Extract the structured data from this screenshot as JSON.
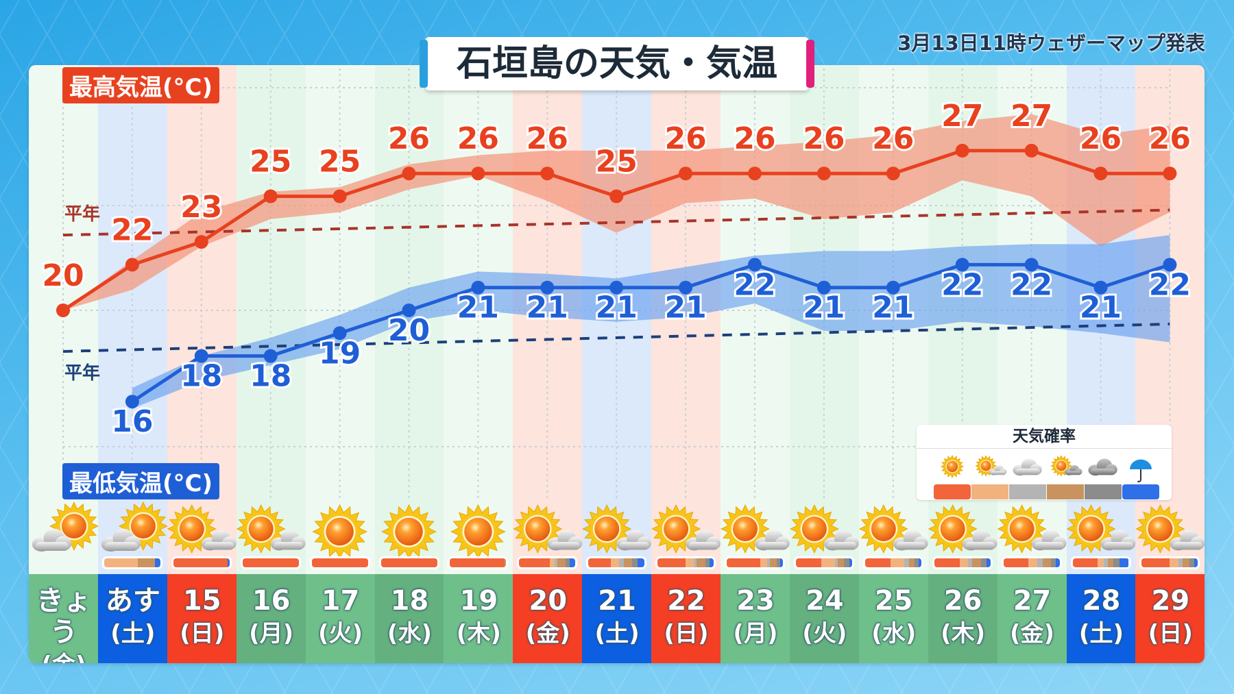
{
  "header": {
    "title": "石垣島の天気・気温",
    "issued": "3月13日11時ウェザーマップ発表"
  },
  "labels": {
    "max_temp": "最高気温(°C)",
    "min_temp": "最低気温(°C)",
    "normal_high": "平年",
    "normal_low": "平年"
  },
  "legend": {
    "title": "天気確率",
    "items": [
      {
        "icon": "sunny-icon",
        "color": "#f2643a"
      },
      {
        "icon": "sunny-then-cloudy-icon",
        "color": "#f2b27e"
      },
      {
        "icon": "cloudy-icon",
        "color": "#b4b4b4"
      },
      {
        "icon": "sunny-cloudy-icon",
        "color": "#c8935e"
      },
      {
        "icon": "overcast-icon",
        "color": "#8c8c8c"
      },
      {
        "icon": "umbrella-icon",
        "color": "#2f6fe8"
      }
    ]
  },
  "colors": {
    "high": "#e8411f",
    "high_band": "#f39a80",
    "high_normal": "#a8342a",
    "low": "#1f5fd6",
    "low_band": "#6aa2f0",
    "low_normal": "#1d3f7a",
    "weekday": "#6fbf8b",
    "saturday": "#0b5fe0",
    "holiday": "#f43f25"
  },
  "days": [
    {
      "date": "きょう",
      "weekday": "(金)",
      "type": "weekday",
      "icon": "cloudy-sunny",
      "prob": null
    },
    {
      "date": "あす",
      "weekday": "(土)",
      "type": "saturday",
      "icon": "cloudy-sunny",
      "prob": [
        0,
        60,
        0,
        30,
        0,
        10
      ]
    },
    {
      "date": "15",
      "weekday": "(日)",
      "type": "holiday",
      "icon": "sunny-cloudy",
      "prob": [
        97,
        0,
        0,
        0,
        0,
        3
      ]
    },
    {
      "date": "16",
      "weekday": "(月)",
      "type": "weekday",
      "icon": "sunny-cloudy",
      "prob": [
        100,
        0,
        0,
        0,
        0,
        0
      ]
    },
    {
      "date": "17",
      "weekday": "(火)",
      "type": "weekday",
      "icon": "sunny",
      "prob": [
        100,
        0,
        0,
        0,
        0,
        0
      ]
    },
    {
      "date": "18",
      "weekday": "(水)",
      "type": "weekday",
      "icon": "sunny",
      "prob": [
        100,
        0,
        0,
        0,
        0,
        0
      ]
    },
    {
      "date": "19",
      "weekday": "(木)",
      "type": "weekday",
      "icon": "sunny",
      "prob": [
        97,
        0,
        0,
        3,
        0,
        0
      ]
    },
    {
      "date": "20",
      "weekday": "(金)",
      "type": "holiday",
      "icon": "sunny-cloudy",
      "prob": [
        55,
        8,
        5,
        15,
        7,
        10
      ]
    },
    {
      "date": "21",
      "weekday": "(土)",
      "type": "saturday",
      "icon": "sunny-cloudy",
      "prob": [
        40,
        15,
        8,
        15,
        10,
        12
      ]
    },
    {
      "date": "22",
      "weekday": "(日)",
      "type": "holiday",
      "icon": "sunny-cloudy",
      "prob": [
        50,
        15,
        5,
        15,
        8,
        7
      ]
    },
    {
      "date": "23",
      "weekday": "(月)",
      "type": "weekday",
      "icon": "sunny-cloudy",
      "prob": [
        60,
        12,
        5,
        12,
        6,
        5
      ]
    },
    {
      "date": "24",
      "weekday": "(火)",
      "type": "weekday",
      "icon": "sunny-cloudy",
      "prob": [
        45,
        25,
        5,
        10,
        10,
        5
      ]
    },
    {
      "date": "25",
      "weekday": "(水)",
      "type": "weekday",
      "icon": "sunny-cloudy",
      "prob": [
        45,
        25,
        8,
        10,
        7,
        5
      ]
    },
    {
      "date": "26",
      "weekday": "(木)",
      "type": "weekday",
      "icon": "sunny-cloudy",
      "prob": [
        45,
        15,
        8,
        15,
        10,
        7
      ]
    },
    {
      "date": "27",
      "weekday": "(金)",
      "type": "weekday",
      "icon": "sunny-cloudy",
      "prob": [
        45,
        15,
        10,
        15,
        8,
        7
      ]
    },
    {
      "date": "28",
      "weekday": "(土)",
      "type": "saturday",
      "icon": "sunny-cloudy",
      "prob": [
        45,
        10,
        8,
        10,
        10,
        17
      ]
    },
    {
      "date": "29",
      "weekday": "(日)",
      "type": "holiday",
      "icon": "sunny-cloudy",
      "prob": [
        50,
        15,
        8,
        12,
        8,
        7
      ]
    }
  ],
  "chart_data": {
    "type": "line",
    "categories": [
      "きょう(金)",
      "あす(土)",
      "15(日)",
      "16(月)",
      "17(火)",
      "18(水)",
      "19(木)",
      "20(金)",
      "21(土)",
      "22(日)",
      "23(月)",
      "24(火)",
      "25(水)",
      "26(木)",
      "27(金)",
      "28(土)",
      "29(日)"
    ],
    "ylim": [
      15,
      29
    ],
    "series": [
      {
        "name": "最高気温(°C)",
        "values": [
          20,
          22,
          23,
          25,
          25,
          26,
          26,
          26,
          25,
          26,
          26,
          26,
          26,
          27,
          27,
          26,
          26
        ],
        "band_upper": [
          20,
          22.2,
          24.3,
          25.2,
          25.4,
          26.4,
          26.8,
          27.0,
          27.0,
          27.0,
          27.2,
          27.4,
          27.7,
          28.3,
          28.6,
          27.7,
          28.1
        ],
        "band_lower": [
          20,
          20.9,
          22.8,
          24.0,
          24.3,
          25.3,
          25.9,
          24.8,
          23.4,
          24.7,
          24.9,
          24.0,
          24.3,
          25.7,
          25.0,
          22.8,
          24.3
        ],
        "normal": [
          23.3,
          24.4
        ]
      },
      {
        "name": "最低気温(°C)",
        "values": [
          null,
          16,
          18,
          18,
          19,
          20,
          21,
          21,
          21,
          21,
          22,
          21,
          21,
          22,
          22,
          21,
          22
        ],
        "band_upper": [
          null,
          16.6,
          18.0,
          18.8,
          19.8,
          21.0,
          21.7,
          21.6,
          21.4,
          21.9,
          22.4,
          22.6,
          22.6,
          22.8,
          22.9,
          22.9,
          23.3
        ],
        "band_lower": [
          null,
          15.7,
          16.9,
          17.6,
          18.3,
          19.5,
          20.0,
          19.7,
          19.5,
          19.7,
          20.3,
          19.1,
          19.1,
          19.5,
          19.3,
          19.0,
          18.6
        ],
        "normal": [
          18.2,
          19.4
        ]
      }
    ],
    "grid": true
  }
}
